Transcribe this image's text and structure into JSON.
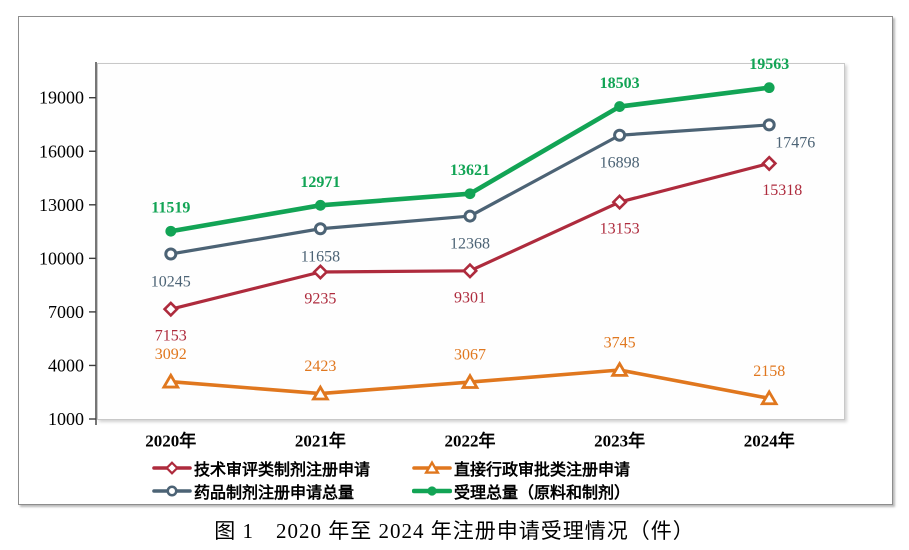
{
  "figure": {
    "caption": "图 1　2020 年至 2024 年注册申请受理情况（件）"
  },
  "chart_data": {
    "type": "line",
    "title": "",
    "xlabel": "",
    "ylabel": "",
    "categories": [
      "2020年",
      "2021年",
      "2022年",
      "2023年",
      "2024年"
    ],
    "series": [
      {
        "name": "技术审评类制剂注册申请",
        "values": [
          7153,
          9235,
          9301,
          13153,
          15318
        ],
        "color": "#ae2b3d",
        "marker": "diamond-open",
        "label_position": "below",
        "label_bold": false
      },
      {
        "name": "直接行政审批类注册申请",
        "values": [
          3092,
          2423,
          3067,
          3745,
          2158
        ],
        "color": "#e0771e",
        "marker": "triangle-open",
        "label_position": "above",
        "label_bold": false
      },
      {
        "name": "药品制剂注册申请总量",
        "values": [
          10245,
          11658,
          12368,
          16898,
          17476
        ],
        "color": "#4c6375",
        "marker": "circle-open",
        "label_position": "below",
        "label_bold": false
      },
      {
        "name": "受理总量（原料和制剂）",
        "values": [
          11519,
          12971,
          13621,
          18503,
          19563
        ],
        "color": "#12a455",
        "marker": "circle-filled",
        "label_position": "above",
        "label_bold": true
      }
    ],
    "y_axis": {
      "min": 1000,
      "max": 21000,
      "ticks": [
        1000,
        4000,
        7000,
        10000,
        13000,
        16000,
        19000
      ]
    },
    "grid": false,
    "legend_position": "bottom",
    "legend_columns": 2
  }
}
